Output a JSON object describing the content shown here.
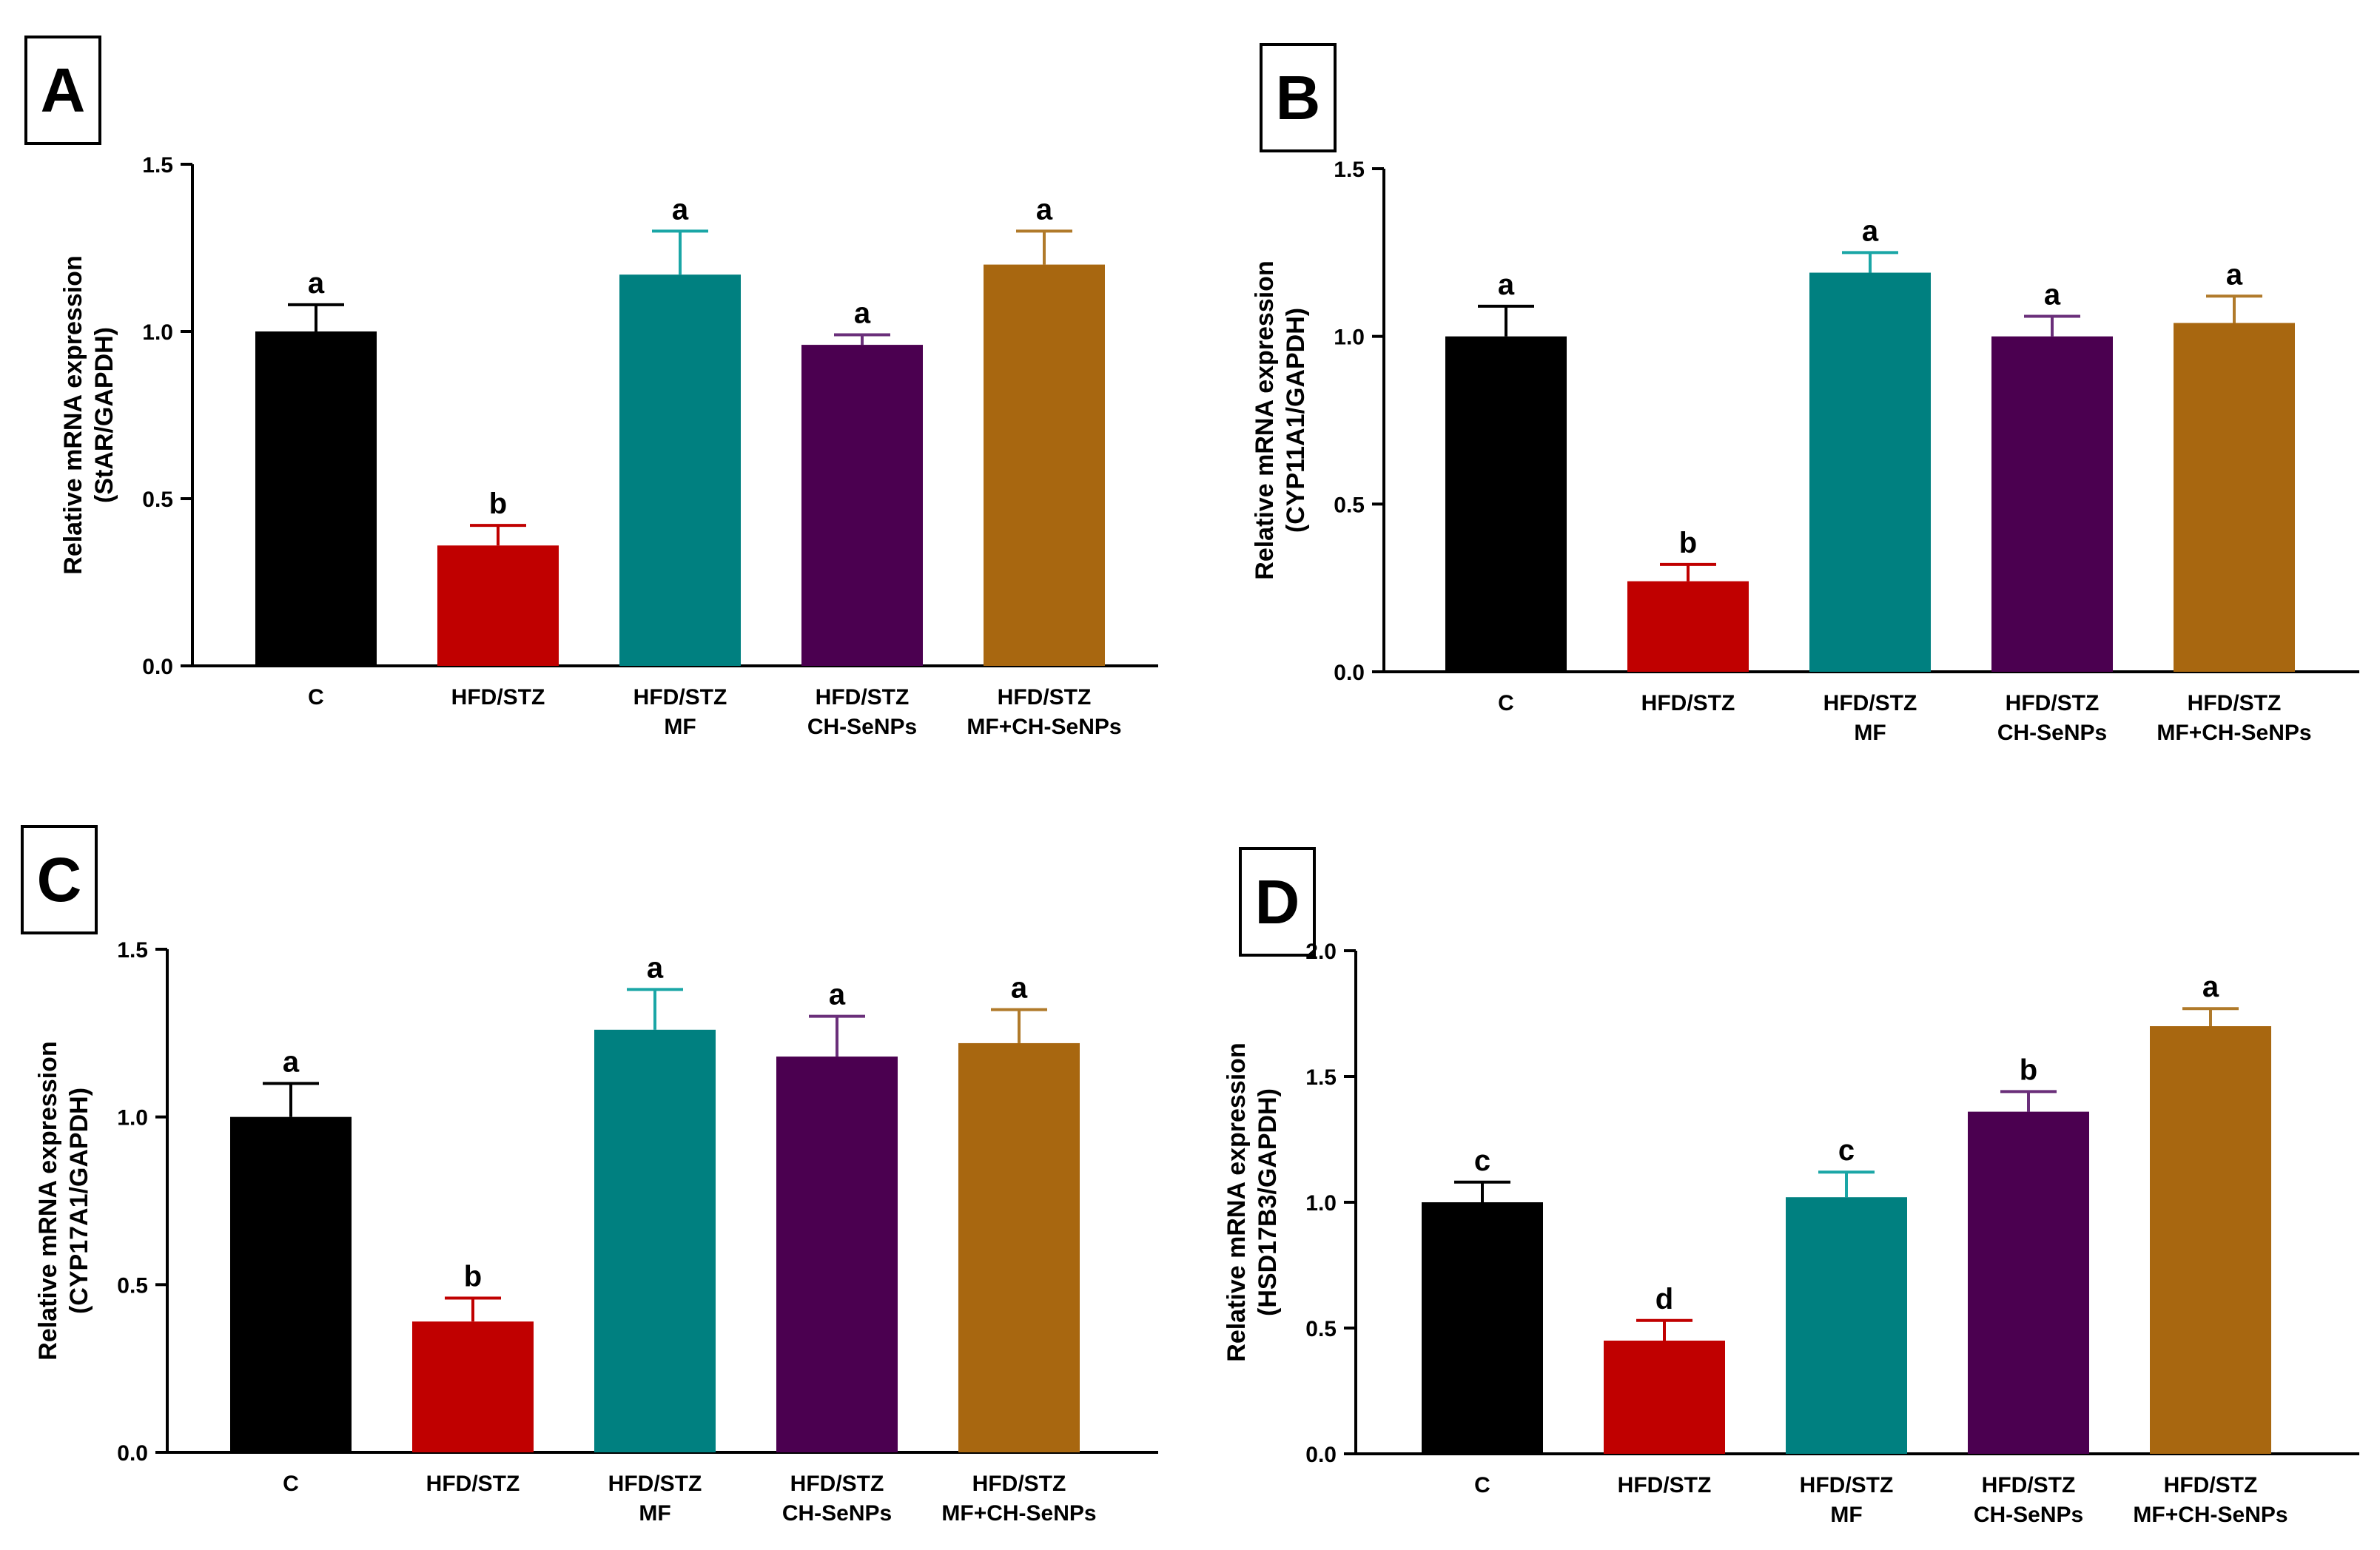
{
  "chart_data": [
    {
      "panel": "A",
      "type": "bar",
      "categories": [
        [
          "C"
        ],
        [
          "HFD/STZ"
        ],
        [
          "HFD/STZ",
          "MF"
        ],
        [
          "HFD/STZ",
          "CH-SeNPs"
        ],
        [
          "HFD/STZ",
          "MF+CH-SeNPs"
        ]
      ],
      "values": [
        1.0,
        0.36,
        1.17,
        0.96,
        1.2
      ],
      "errors": [
        0.08,
        0.06,
        0.13,
        0.03,
        0.1
      ],
      "letters": [
        "a",
        "b",
        "a",
        "a",
        "a"
      ],
      "ylabel": [
        "Relative mRNA expression",
        "(StAR/GAPDH)"
      ],
      "ylim": [
        0,
        1.5
      ],
      "yticks": [
        "0.0",
        "0.5",
        "1.0",
        "1.5"
      ],
      "ytick_values": [
        0,
        0.5,
        1.0,
        1.5
      ]
    },
    {
      "panel": "B",
      "type": "bar",
      "categories": [
        [
          "C"
        ],
        [
          "HFD/STZ"
        ],
        [
          "HFD/STZ",
          "MF"
        ],
        [
          "HFD/STZ",
          "CH-SeNPs"
        ],
        [
          "HFD/STZ",
          "MF+CH-SeNPs"
        ]
      ],
      "values": [
        1.0,
        0.27,
        1.19,
        1.0,
        1.04
      ],
      "errors": [
        0.09,
        0.05,
        0.06,
        0.06,
        0.08
      ],
      "letters": [
        "a",
        "b",
        "a",
        "a",
        "a"
      ],
      "ylabel": [
        "Relative mRNA expression",
        "(CYP11A1/GAPDH)"
      ],
      "ylim": [
        0,
        1.5
      ],
      "yticks": [
        "0.0",
        "0.5",
        "1.0",
        "1.5"
      ],
      "ytick_values": [
        0,
        0.5,
        1.0,
        1.5
      ]
    },
    {
      "panel": "C",
      "type": "bar",
      "categories": [
        [
          "C"
        ],
        [
          "HFD/STZ"
        ],
        [
          "HFD/STZ",
          "MF"
        ],
        [
          "HFD/STZ",
          "CH-SeNPs"
        ],
        [
          "HFD/STZ",
          "MF+CH-SeNPs"
        ]
      ],
      "values": [
        1.0,
        0.39,
        1.26,
        1.18,
        1.22
      ],
      "errors": [
        0.1,
        0.07,
        0.12,
        0.12,
        0.1
      ],
      "letters": [
        "a",
        "b",
        "a",
        "a",
        "a"
      ],
      "ylabel": [
        "Relative mRNA expression",
        "(CYP17A1/GAPDH)"
      ],
      "ylim": [
        0,
        1.5
      ],
      "yticks": [
        "0.0",
        "0.5",
        "1.0",
        "1.5"
      ],
      "ytick_values": [
        0,
        0.5,
        1.0,
        1.5
      ]
    },
    {
      "panel": "D",
      "type": "bar",
      "categories": [
        [
          "C"
        ],
        [
          "HFD/STZ"
        ],
        [
          "HFD/STZ",
          "MF"
        ],
        [
          "HFD/STZ",
          "CH-SeNPs"
        ],
        [
          "HFD/STZ",
          "MF+CH-SeNPs"
        ]
      ],
      "values": [
        1.0,
        0.45,
        1.02,
        1.36,
        1.7
      ],
      "errors": [
        0.08,
        0.08,
        0.1,
        0.08,
        0.07
      ],
      "letters": [
        "c",
        "d",
        "c",
        "b",
        "a"
      ],
      "ylabel": [
        "Relative mRNA expression",
        "(HSD17B3/GAPDH)"
      ],
      "ylim": [
        0,
        2.0
      ],
      "yticks": [
        "0.0",
        "0.5",
        "1.0",
        "1.5",
        "2.0"
      ],
      "ytick_values": [
        0,
        0.5,
        1.0,
        1.5,
        2.0
      ]
    }
  ],
  "colors": [
    "#000000",
    "#c00000",
    "#008080",
    "#4b0050",
    "#a86710"
  ],
  "error_colors": [
    "#000000",
    "#c00000",
    "#1aa6a6",
    "#6a2f7a",
    "#b07a2a"
  ]
}
